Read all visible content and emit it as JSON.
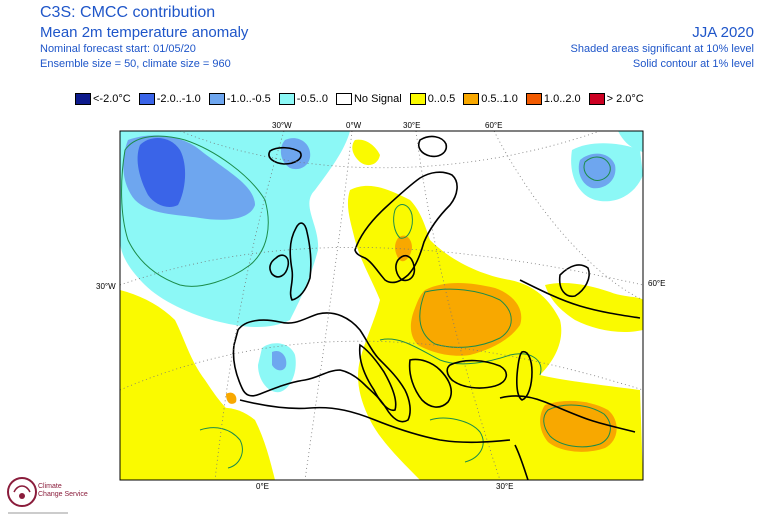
{
  "header": {
    "title": "C3S: CMCC contribution",
    "subtitle": "Mean 2m temperature anomaly",
    "forecast_start": "Nominal forecast start: 01/05/20",
    "ensemble": "Ensemble size = 50, climate size = 960",
    "period": "JJA 2020",
    "significance_shaded": "Shaded areas significant at 10% level",
    "significance_contour": "Solid contour at 1% level"
  },
  "legend": [
    {
      "label": "<-2.0°C",
      "color": "#0d1a8c"
    },
    {
      "label": "-2.0..-1.0",
      "color": "#3a64e8"
    },
    {
      "label": "-1.0..-0.5",
      "color": "#6ea6ef"
    },
    {
      "label": "-0.5..0",
      "color": "#8cf8f6"
    },
    {
      "label": "No Signal",
      "color": "#ffffff"
    },
    {
      "label": "0..0.5",
      "color": "#fafa00"
    },
    {
      "label": "0.5..1.0",
      "color": "#f8a800"
    },
    {
      "label": "1.0..2.0",
      "color": "#f25a00"
    },
    {
      "label": "> 2.0°C",
      "color": "#cc0022"
    }
  ],
  "map_labels": {
    "lon_30w_top": "30°W",
    "lon_0w_top": "0°W",
    "lon_30e_top": "30°E",
    "lon_60e_top": "60°E",
    "lon_30w_left": "30°W",
    "lon_60e_right": "60°E",
    "lon_0e_bottom": "0°E",
    "lon_30e_bottom": "30°E"
  },
  "logo": {
    "line1": "Climate",
    "line2": "Change Service"
  }
}
